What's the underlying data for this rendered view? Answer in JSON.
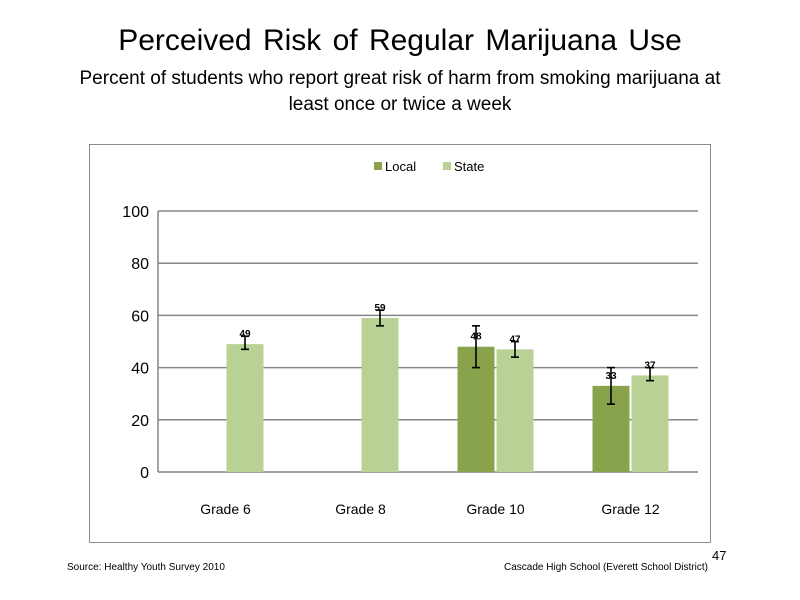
{
  "slide": {
    "title": "Perceived  Risk of Regular  Marijuana  Use",
    "subtitle": "Percent of students who report great risk of harm from smoking marijuana  at least once or twice a week",
    "source": "Source: Healthy  Youth Survey 2010",
    "footer_right": "Cascade High School (Everett School District)",
    "slide_number": "47"
  },
  "chart_data": {
    "type": "bar",
    "categories": [
      "Grade 6",
      "Grade 8",
      "Grade 10",
      "Grade 12"
    ],
    "series": [
      {
        "name": "Local",
        "color": "#88a34c",
        "values": [
          null,
          null,
          48,
          33
        ],
        "error_low": [
          null,
          null,
          40,
          26
        ],
        "error_high": [
          null,
          null,
          56,
          40
        ]
      },
      {
        "name": "State",
        "color": "#bad196",
        "values": [
          49,
          59,
          47,
          37
        ],
        "error_low": [
          47,
          56,
          44,
          35
        ],
        "error_high": [
          52,
          62,
          50,
          40
        ]
      }
    ],
    "ylim": [
      0,
      100
    ],
    "yticks": [
      0,
      20,
      40,
      60,
      80,
      100
    ],
    "grid": true,
    "legend_position": "top-center"
  }
}
